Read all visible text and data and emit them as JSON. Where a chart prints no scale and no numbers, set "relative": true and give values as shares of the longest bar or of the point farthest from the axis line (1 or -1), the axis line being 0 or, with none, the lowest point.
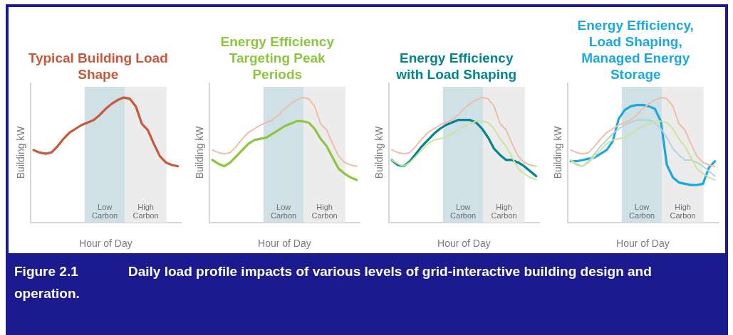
{
  "chart_data": [
    {
      "type": "line",
      "title": "Typical Building Load Shape",
      "xlabel": "Hour of Day",
      "ylabel": "Building kW",
      "relative": true,
      "marker": "none",
      "categories": [
        null,
        null,
        null,
        null,
        null,
        null,
        null,
        null,
        null,
        null,
        null,
        null,
        null,
        null,
        null,
        null,
        null,
        null,
        null,
        null,
        null,
        null,
        null,
        null,
        null
      ],
      "series": [
        {
          "color": "#c9573a",
          "values": [
            0.58,
            0.56,
            0.55,
            0.56,
            0.61,
            0.67,
            0.72,
            0.75,
            0.78,
            0.8,
            0.82,
            0.86,
            0.91,
            0.95,
            0.98,
            1,
            0.99,
            0.93,
            0.79,
            0.74,
            0.63,
            0.53,
            0.48,
            0.46,
            0.45
          ]
        }
      ],
      "annotations": [
        "Low Carbon",
        "High Carbon",
        "Figure 2.1",
        "Daily load profile impacts of various levels of grid-interactive building design and operation."
      ]
    },
    {
      "type": "line",
      "title": "Energy Efficiency Targeting Peak Periods",
      "xlabel": "Hour of Day",
      "ylabel": "Building kW",
      "relative": true,
      "marker": "none",
      "categories": [
        null,
        null,
        null,
        null,
        null,
        null,
        null,
        null,
        null,
        null,
        null,
        null,
        null,
        null,
        null,
        null,
        null,
        null,
        null,
        null,
        null,
        null,
        null,
        null,
        null
      ],
      "series": [
        {
          "color": "#f0bca8",
          "values": [
            0.58,
            0.56,
            0.55,
            0.56,
            0.61,
            0.67,
            0.72,
            0.75,
            0.78,
            0.8,
            0.82,
            0.86,
            0.91,
            0.95,
            0.98,
            1,
            0.99,
            0.93,
            0.79,
            0.74,
            0.63,
            0.53,
            0.48,
            0.46,
            0.45
          ]
        },
        {
          "color": "#8cc63f",
          "values": [
            0.5,
            0.47,
            0.45,
            0.48,
            0.53,
            0.58,
            0.63,
            0.66,
            0.67,
            0.68,
            0.71,
            0.74,
            0.77,
            0.79,
            0.81,
            0.81,
            0.8,
            0.75,
            0.67,
            0.61,
            0.52,
            0.43,
            0.39,
            0.36,
            0.34
          ]
        }
      ],
      "annotations": [
        "Low Carbon",
        "High Carbon"
      ]
    },
    {
      "type": "line",
      "title": "Energy Efficiency with Load Shaping",
      "xlabel": "Hour of Day",
      "ylabel": "Building kW",
      "relative": true,
      "marker": "none",
      "categories": [
        null,
        null,
        null,
        null,
        null,
        null,
        null,
        null,
        null,
        null,
        null,
        null,
        null,
        null,
        null,
        null,
        null,
        null,
        null,
        null,
        null,
        null,
        null,
        null,
        null
      ],
      "series": [
        {
          "color": "#f0bca8",
          "values": [
            0.58,
            0.56,
            0.55,
            0.56,
            0.61,
            0.67,
            0.72,
            0.75,
            0.78,
            0.8,
            0.82,
            0.86,
            0.91,
            0.95,
            0.98,
            1,
            0.99,
            0.93,
            0.79,
            0.74,
            0.63,
            0.53,
            0.48,
            0.46,
            0.45
          ]
        },
        {
          "color": "#cde39d",
          "values": [
            0.5,
            0.47,
            0.45,
            0.48,
            0.53,
            0.58,
            0.63,
            0.66,
            0.67,
            0.68,
            0.71,
            0.74,
            0.77,
            0.79,
            0.81,
            0.81,
            0.8,
            0.75,
            0.67,
            0.61,
            0.52,
            0.43,
            0.39,
            0.36,
            0.34
          ]
        },
        {
          "color": "#00868f",
          "values": [
            0.5,
            0.46,
            0.45,
            0.49,
            0.55,
            0.61,
            0.66,
            0.71,
            0.75,
            0.78,
            0.8,
            0.82,
            0.82,
            0.82,
            0.8,
            0.75,
            0.68,
            0.59,
            0.54,
            0.5,
            0.5,
            0.48,
            0.45,
            0.41,
            0.37
          ]
        }
      ],
      "annotations": [
        "Low Carbon",
        "High Carbon"
      ]
    },
    {
      "type": "line",
      "title": "Energy Efficiency, Load Shaping, Managed Energy Storage",
      "xlabel": "Hour of Day",
      "ylabel": "Building kW",
      "relative": true,
      "marker": "none",
      "categories": [
        null,
        null,
        null,
        null,
        null,
        null,
        null,
        null,
        null,
        null,
        null,
        null,
        null,
        null,
        null,
        null,
        null,
        null,
        null,
        null,
        null,
        null,
        null,
        null,
        null
      ],
      "series": [
        {
          "color": "#f0bca8",
          "values": [
            0.58,
            0.56,
            0.55,
            0.56,
            0.61,
            0.67,
            0.72,
            0.75,
            0.78,
            0.8,
            0.82,
            0.86,
            0.91,
            0.95,
            0.98,
            1,
            0.99,
            0.93,
            0.79,
            0.74,
            0.63,
            0.53,
            0.48,
            0.46,
            0.45
          ]
        },
        {
          "color": "#cde39d",
          "values": [
            0.5,
            0.47,
            0.45,
            0.48,
            0.53,
            0.58,
            0.63,
            0.66,
            0.67,
            0.68,
            0.71,
            0.74,
            0.77,
            0.79,
            0.81,
            0.81,
            0.8,
            0.75,
            0.67,
            0.61,
            0.52,
            0.43,
            0.39,
            0.36,
            0.34
          ]
        },
        {
          "color": "#b3d3d6",
          "values": [
            0.5,
            0.46,
            0.45,
            0.49,
            0.55,
            0.61,
            0.66,
            0.71,
            0.75,
            0.78,
            0.8,
            0.82,
            0.82,
            0.82,
            0.8,
            0.75,
            0.68,
            0.59,
            0.54,
            0.5,
            0.5,
            0.48,
            0.45,
            0.41,
            0.37
          ]
        },
        {
          "color": "#1aa8e0",
          "values": [
            0.49,
            0.49,
            0.5,
            0.51,
            0.52,
            0.55,
            0.58,
            0.65,
            0.83,
            0.9,
            0.93,
            0.94,
            0.94,
            0.93,
            0.91,
            0.81,
            0.46,
            0.36,
            0.32,
            0.31,
            0.3,
            0.3,
            0.31,
            0.44,
            0.49
          ]
        }
      ],
      "annotations": [
        "Low Carbon",
        "High Carbon"
      ]
    }
  ]
}
